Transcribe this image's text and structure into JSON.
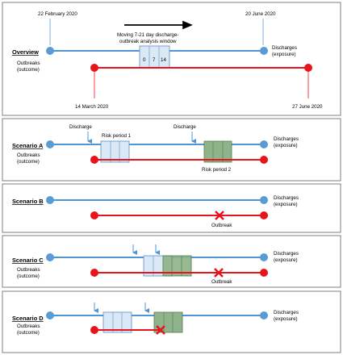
{
  "colors": {
    "discharge_line": "#4f94d4",
    "outbreak_line": "#e8141b",
    "node_blue": "#5b9bd5",
    "node_red": "#e8141b",
    "window_blue_fill": "#dbe8f6",
    "window_blue_stroke": "#5b8fc9",
    "window_green_fill": "#8fb38a",
    "window_green_stroke": "#4f7a49",
    "panel_border": "#7f7f7f",
    "cross": "#e8141b",
    "arrow": "#000000"
  },
  "overview": {
    "title": "Overview",
    "date_start_discharge": "22 February 2020",
    "date_end_discharge": "20 June 2020",
    "date_start_outbreak": "14 March 2020",
    "date_end_outbreak": "27 June 2020",
    "window_caption_line1": "Moving 7-21 day discharge-",
    "window_caption_line2": "outbreak analysis window",
    "window_ticks": [
      "0",
      "7",
      "14"
    ],
    "discharges_label_line1": "Discharges",
    "discharges_label_line2": "(exposure)",
    "outbreaks_label_line1": "Outbreaks",
    "outbreaks_label_line2": "(outcome)"
  },
  "scenario_a": {
    "title": "Scenario A",
    "discharge_label_1": "Discharge",
    "discharge_label_2": "Discharge",
    "risk_period_1": "Risk period 1",
    "risk_period_2": "Risk period 2",
    "discharges_label_line1": "Discharges",
    "discharges_label_line2": "(exposure)",
    "outbreaks_label_line1": "Outbreaks",
    "outbreaks_label_line2": "(outcome)"
  },
  "scenario_b": {
    "title": "Scenario B",
    "discharges_label_line1": "Discharges",
    "discharges_label_line2": "(exposure)",
    "outbreak_label": "Outbreak"
  },
  "scenario_c": {
    "title": "Scenario C",
    "discharges_label_line1": "Discharges",
    "discharges_label_line2": "(exposure)",
    "outbreaks_label_line1": "Outbreaks",
    "outbreaks_label_line2": "(outcome)",
    "outbreak_label": "Outbreak"
  },
  "scenario_d": {
    "title": "Scenario D",
    "discharges_label_line1": "Discharges",
    "discharges_label_line2": "(exposure)",
    "outbreaks_label_line1": "Outbreaks",
    "outbreaks_label_line2": "(outcome)"
  }
}
